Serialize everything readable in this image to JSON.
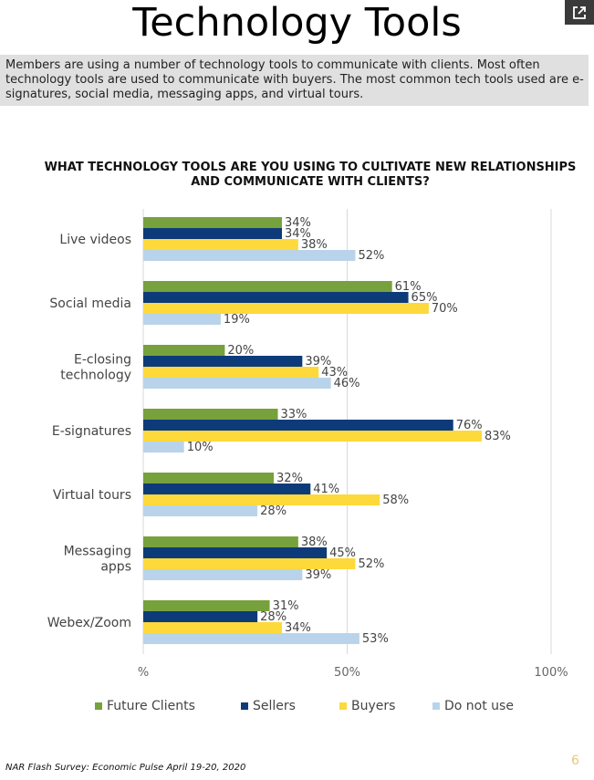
{
  "header": {
    "title": "Technology Tools",
    "summary": "Members are using a number of technology tools to communicate with clients. Most often technology tools are used to communicate with buyers. The most common tech tools used are e-signatures, social media, messaging apps, and virtual tours."
  },
  "icons": {
    "popout": "external-link-icon"
  },
  "chart_data": {
    "type": "bar",
    "orientation": "horizontal",
    "title": "WHAT TECHNOLOGY TOOLS ARE YOU USING TO CULTIVATE NEW RELATIONSHIPS AND COMMUNICATE WITH CLIENTS?",
    "categories": [
      "Live videos",
      "Social media",
      "E-closing technology",
      "E-signatures",
      "Virtual tours",
      "Messaging apps",
      "Webex/Zoom"
    ],
    "series": [
      {
        "name": "Future Clients",
        "color": "#77a13c",
        "values": [
          34,
          61,
          20,
          33,
          32,
          38,
          31
        ]
      },
      {
        "name": "Sellers",
        "color": "#0d3b7a",
        "values": [
          34,
          65,
          39,
          76,
          41,
          45,
          28
        ]
      },
      {
        "name": "Buyers",
        "color": "#fdd93b",
        "values": [
          38,
          70,
          43,
          83,
          58,
          52,
          34
        ]
      },
      {
        "name": "Do not use",
        "color": "#b9d4ea",
        "values": [
          52,
          19,
          46,
          10,
          28,
          39,
          53
        ]
      }
    ],
    "xticks": [
      "%",
      "50%",
      "100%"
    ],
    "xlim": [
      0,
      100
    ],
    "value_suffix": "%",
    "grid": true,
    "legend": "bottom"
  },
  "footer": {
    "source": "NAR Flash Survey: Economic Pulse April 19-20, 2020",
    "page": "6"
  }
}
